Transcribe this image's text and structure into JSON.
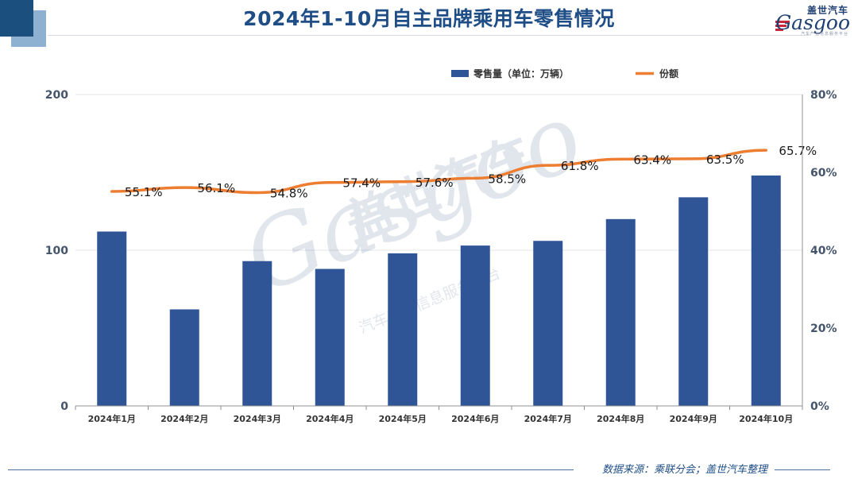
{
  "header": {
    "title": "2024年1-10月自主品牌乘用车零售情况",
    "logo_cn": "盖世汽车",
    "logo_en": "Gasgoo",
    "logo_sub": "汽车产业信息服务平台"
  },
  "watermark": {
    "cn": "盖世汽车",
    "en": "Gasgoo",
    "sub": "汽车产业信息服务平台"
  },
  "chart_data": {
    "type": "bar",
    "categories": [
      "2024年1月",
      "2024年2月",
      "2024年3月",
      "2024年4月",
      "2024年5月",
      "2024年6月",
      "2024年7月",
      "2024年8月",
      "2024年9月",
      "2024年10月"
    ],
    "series": [
      {
        "name": "零售量（单位：万辆）",
        "type": "bar",
        "axis": "left",
        "color": "#2f5597",
        "values": [
          112,
          62,
          93,
          88,
          98,
          103,
          106,
          120,
          134,
          148
        ]
      },
      {
        "name": "份额",
        "type": "line",
        "axis": "right",
        "color": "#ed7d31",
        "values": [
          55.1,
          56.1,
          54.8,
          57.4,
          57.6,
          58.5,
          61.8,
          63.4,
          63.5,
          65.7
        ],
        "labels": [
          "55.1%",
          "56.1%",
          "54.8%",
          "57.4%",
          "57.6%",
          "58.5%",
          "61.8%",
          "63.4%",
          "63.5%",
          "65.7%"
        ]
      }
    ],
    "y_left": {
      "ticks": [
        "0",
        "100",
        "200"
      ],
      "values": [
        0,
        100,
        200
      ],
      "ylim": [
        0,
        200
      ]
    },
    "y_right": {
      "ticks": [
        "0%",
        "20%",
        "40%",
        "60%",
        "80%"
      ],
      "values": [
        0,
        20,
        40,
        60,
        80
      ],
      "ylim": [
        0,
        80
      ]
    },
    "grid": true,
    "legend": "top-center"
  },
  "footer": {
    "source": "数据来源：乘联分会；盖世汽车整理"
  }
}
